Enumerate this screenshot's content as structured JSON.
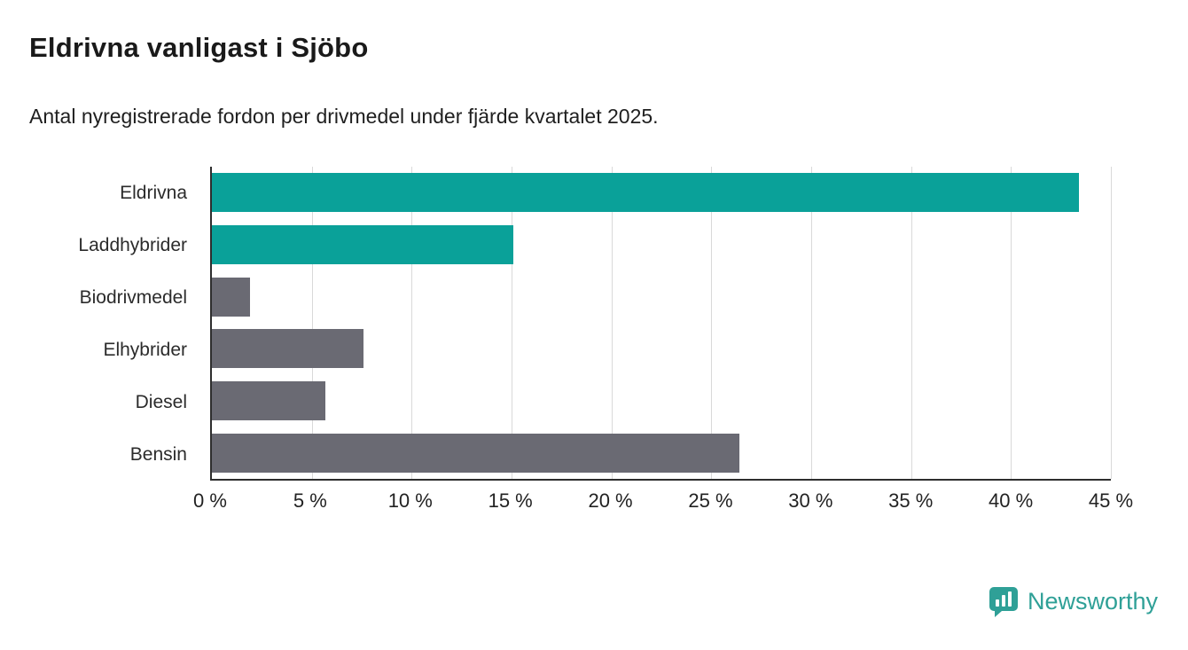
{
  "title": "Eldrivna vanligast i Sjöbo",
  "subtitle": "Antal nyregistrerade fordon per drivmedel under fjärde kvartalet 2025.",
  "chart_data": {
    "type": "bar",
    "orientation": "horizontal",
    "title": "Eldrivna vanligast i Sjöbo",
    "subtitle": "Antal nyregistrerade fordon per drivmedel under fjärde kvartalet 2025.",
    "categories": [
      "Eldrivna",
      "Laddhybrider",
      "Biodrivmedel",
      "Elhybrider",
      "Diesel",
      "Bensin"
    ],
    "values": [
      43.4,
      15.1,
      1.9,
      7.6,
      5.7,
      26.4
    ],
    "unit": "%",
    "bar_colors": [
      "#0aa199",
      "#0aa199",
      "#6a6a73",
      "#6a6a73",
      "#6a6a73",
      "#6a6a73"
    ],
    "xlim": [
      0,
      45
    ],
    "x_ticks": [
      0,
      5,
      10,
      15,
      20,
      25,
      30,
      35,
      40,
      45
    ],
    "x_tick_labels": [
      "0 %",
      "5 %",
      "10 %",
      "15 %",
      "20 %",
      "25 %",
      "30 %",
      "35 %",
      "40 %",
      "45 %"
    ],
    "xlabel": "",
    "ylabel": "",
    "grid": true,
    "legend": false
  },
  "colors": {
    "accent_teal": "#0aa199",
    "bar_gray": "#6a6a73",
    "gridline": "#d9d9d9",
    "axis": "#2e2e2e",
    "text": "#1a1a1a"
  },
  "footer": {
    "brand": "Newsworthy",
    "logo": "newsworthy-speech-bubble-chart-icon"
  }
}
